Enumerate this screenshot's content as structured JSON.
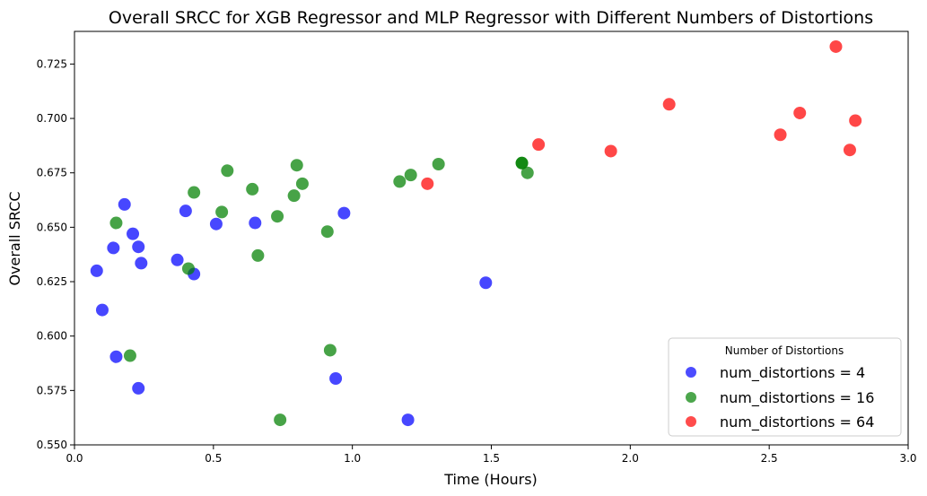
{
  "chart_data": {
    "type": "scatter",
    "title": "Overall SRCC for XGB Regressor and MLP Regressor with Different Numbers of Distortions",
    "xlabel": "Time (Hours)",
    "ylabel": "Overall SRCC",
    "xlim": [
      0.0,
      3.0
    ],
    "ylim": [
      0.55,
      0.74
    ],
    "xticks": [
      "0.0",
      "0.5",
      "1.0",
      "1.5",
      "2.0",
      "2.5",
      "3.0"
    ],
    "yticks": [
      "0.550",
      "0.575",
      "0.600",
      "0.625",
      "0.650",
      "0.675",
      "0.700",
      "0.725"
    ],
    "grid": false,
    "legend": {
      "title": "Number of Distortions",
      "placement": "lower-right"
    },
    "series": [
      {
        "name": "num_distortions = 4",
        "color": "#0000ff",
        "points": [
          [
            0.08,
            0.63
          ],
          [
            0.1,
            0.612
          ],
          [
            0.14,
            0.6405
          ],
          [
            0.15,
            0.5905
          ],
          [
            0.18,
            0.6605
          ],
          [
            0.21,
            0.647
          ],
          [
            0.23,
            0.641
          ],
          [
            0.23,
            0.576
          ],
          [
            0.24,
            0.6335
          ],
          [
            0.37,
            0.635
          ],
          [
            0.4,
            0.6575
          ],
          [
            0.43,
            0.6285
          ],
          [
            0.51,
            0.6515
          ],
          [
            0.65,
            0.652
          ],
          [
            0.94,
            0.5805
          ],
          [
            0.97,
            0.6565
          ],
          [
            1.2,
            0.5615
          ],
          [
            1.48,
            0.6245
          ]
        ]
      },
      {
        "name": "num_distortions = 16",
        "color": "#008000",
        "points": [
          [
            0.15,
            0.652
          ],
          [
            0.2,
            0.591
          ],
          [
            0.41,
            0.631
          ],
          [
            0.43,
            0.666
          ],
          [
            0.53,
            0.657
          ],
          [
            0.55,
            0.676
          ],
          [
            0.64,
            0.6675
          ],
          [
            0.66,
            0.637
          ],
          [
            0.73,
            0.655
          ],
          [
            0.74,
            0.5615
          ],
          [
            0.79,
            0.6645
          ],
          [
            0.8,
            0.6785
          ],
          [
            0.82,
            0.67
          ],
          [
            0.91,
            0.648
          ],
          [
            0.92,
            0.5935
          ],
          [
            1.17,
            0.671
          ],
          [
            1.21,
            0.674
          ],
          [
            1.31,
            0.679
          ],
          [
            1.61,
            0.6795
          ],
          [
            1.61,
            0.6795
          ],
          [
            1.63,
            0.675
          ]
        ]
      },
      {
        "name": "num_distortions = 64",
        "color": "#ff0000",
        "points": [
          [
            1.27,
            0.67
          ],
          [
            1.67,
            0.688
          ],
          [
            1.93,
            0.685
          ],
          [
            2.14,
            0.7065
          ],
          [
            2.54,
            0.6925
          ],
          [
            2.61,
            0.7025
          ],
          [
            2.74,
            0.733
          ],
          [
            2.79,
            0.6855
          ],
          [
            2.81,
            0.699
          ]
        ]
      }
    ]
  }
}
